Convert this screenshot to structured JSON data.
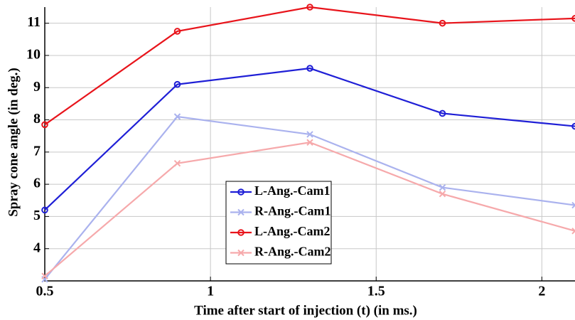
{
  "chart_data": {
    "type": "line",
    "x_label": "Time after start of injection (t) (in ms.)",
    "y_label": "Spray cone angle (in deg.)",
    "x": [
      0.5,
      0.9,
      1.3,
      1.7,
      2.1
    ],
    "series": [
      {
        "name": "L-Ang.-Cam1",
        "color": "#1f1fd6",
        "marker": "o",
        "values": [
          5.2,
          9.1,
          9.6,
          8.2,
          7.8
        ]
      },
      {
        "name": "R-Ang.-Cam1",
        "color": "#aab2ee",
        "marker": "x",
        "values": [
          3.05,
          8.1,
          7.55,
          5.9,
          5.35
        ]
      },
      {
        "name": "L-Ang.-Cam2",
        "color": "#e8141b",
        "marker": "o",
        "values": [
          7.85,
          10.75,
          11.5,
          11.0,
          11.15
        ]
      },
      {
        "name": "R-Ang.-Cam2",
        "color": "#f6a9ab",
        "marker": "x",
        "values": [
          3.15,
          6.65,
          7.3,
          5.7,
          4.55
        ]
      }
    ],
    "xlim": [
      0.5,
      2.1
    ],
    "xticks": [
      0.5,
      1,
      1.5,
      2
    ],
    "ylim": [
      3,
      11.5
    ],
    "yticks": [
      4,
      5,
      6,
      7,
      8,
      9,
      10,
      11
    ],
    "grid": true,
    "legend": "center"
  }
}
